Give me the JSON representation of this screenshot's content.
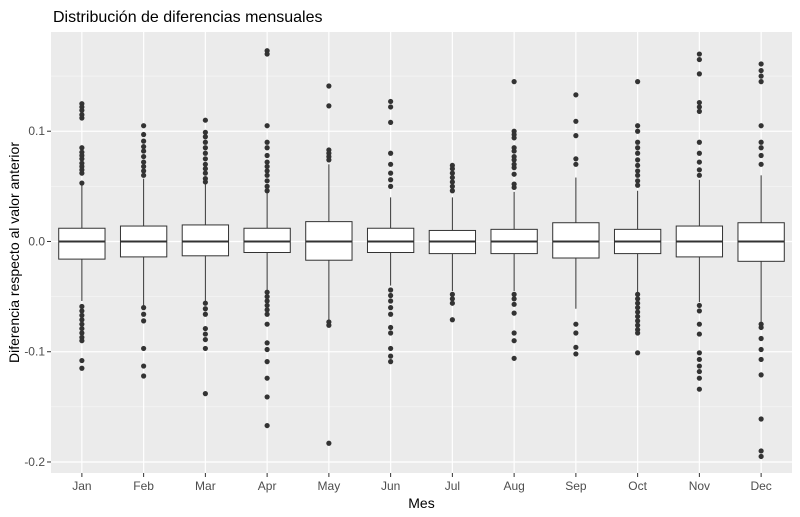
{
  "chart_data": {
    "type": "box",
    "title": "Distribución de diferencias mensuales",
    "xlabel": "Mes",
    "ylabel": "Diferencia respecto al valor anterior",
    "ylim": [
      -0.21,
      0.19
    ],
    "yticks": [
      {
        "value": 0.1,
        "label": "0.1"
      },
      {
        "value": 0.0,
        "label": "0.0"
      },
      {
        "value": -0.1,
        "label": "-0.1"
      },
      {
        "value": -0.2,
        "label": "-0.2"
      }
    ],
    "minor_yticks": [
      0.15,
      0.05,
      -0.05,
      -0.15
    ],
    "grid": true,
    "colors": {
      "panel": "#ebebeb",
      "grid_major": "#ffffff",
      "box_fill": "#ffffff",
      "box_line": "#333333",
      "outlier": "#333333"
    },
    "categories": [
      "Jan",
      "Feb",
      "Mar",
      "Apr",
      "May",
      "Jun",
      "Jul",
      "Aug",
      "Sep",
      "Oct",
      "Nov",
      "Dec"
    ],
    "boxes": [
      {
        "category": "Jan",
        "q1": -0.016,
        "median": 0.0,
        "q3": 0.012,
        "whisker_low": -0.054,
        "whisker_high": 0.052,
        "outliers": [
          0.125,
          0.122,
          0.119,
          0.115,
          0.112,
          0.085,
          0.081,
          0.078,
          0.075,
          0.071,
          0.068,
          0.065,
          0.062,
          0.053,
          -0.059,
          -0.063,
          -0.067,
          -0.071,
          -0.075,
          -0.079,
          -0.083,
          -0.087,
          -0.09,
          -0.108,
          -0.115
        ]
      },
      {
        "category": "Feb",
        "q1": -0.014,
        "median": 0.0,
        "q3": 0.014,
        "whisker_low": -0.058,
        "whisker_high": 0.057,
        "outliers": [
          0.105,
          0.097,
          0.091,
          0.086,
          0.082,
          0.077,
          0.072,
          0.068,
          0.064,
          0.06,
          -0.06,
          -0.066,
          -0.072,
          -0.097,
          -0.113,
          -0.122
        ]
      },
      {
        "category": "Mar",
        "q1": -0.013,
        "median": 0.0,
        "q3": 0.015,
        "whisker_low": -0.055,
        "whisker_high": 0.052,
        "outliers": [
          0.11,
          0.099,
          0.095,
          0.09,
          0.085,
          0.08,
          0.075,
          0.07,
          0.066,
          0.062,
          0.057,
          0.054,
          -0.056,
          -0.061,
          -0.066,
          -0.079,
          -0.084,
          -0.089,
          -0.097,
          -0.138
        ]
      },
      {
        "category": "Apr",
        "q1": -0.01,
        "median": 0.0,
        "q3": 0.012,
        "whisker_low": -0.044,
        "whisker_high": 0.044,
        "outliers": [
          0.173,
          0.17,
          0.105,
          0.09,
          0.085,
          0.078,
          0.072,
          0.068,
          0.064,
          0.06,
          0.055,
          0.05,
          0.046,
          -0.046,
          -0.05,
          -0.054,
          -0.058,
          -0.062,
          -0.066,
          -0.075,
          -0.092,
          -0.098,
          -0.109,
          -0.124,
          -0.141,
          -0.167
        ]
      },
      {
        "category": "May",
        "q1": -0.017,
        "median": 0.0,
        "q3": 0.018,
        "whisker_low": -0.071,
        "whisker_high": 0.07,
        "outliers": [
          0.141,
          0.123,
          0.083,
          0.08,
          0.077,
          0.074,
          -0.073,
          -0.076,
          -0.183
        ]
      },
      {
        "category": "Jun",
        "q1": -0.01,
        "median": 0.0,
        "q3": 0.012,
        "whisker_low": -0.04,
        "whisker_high": 0.04,
        "outliers": [
          0.127,
          0.122,
          0.108,
          0.08,
          0.07,
          0.062,
          0.056,
          0.05,
          -0.044,
          -0.049,
          -0.054,
          -0.06,
          -0.066,
          -0.078,
          -0.083,
          -0.097,
          -0.104,
          -0.109
        ]
      },
      {
        "category": "Jul",
        "q1": -0.011,
        "median": 0.0,
        "q3": 0.01,
        "whisker_low": -0.045,
        "whisker_high": 0.04,
        "outliers": [
          0.069,
          0.066,
          0.062,
          0.058,
          0.054,
          0.05,
          0.046,
          -0.048,
          -0.052,
          -0.056,
          -0.071
        ]
      },
      {
        "category": "Aug",
        "q1": -0.011,
        "median": 0.0,
        "q3": 0.011,
        "whisker_low": -0.045,
        "whisker_high": 0.045,
        "outliers": [
          0.145,
          0.1,
          0.097,
          0.094,
          0.085,
          0.082,
          0.077,
          0.074,
          0.07,
          0.067,
          0.061,
          0.052,
          0.049,
          -0.048,
          -0.052,
          -0.057,
          -0.065,
          -0.083,
          -0.09,
          -0.106
        ]
      },
      {
        "category": "Sep",
        "q1": -0.015,
        "median": 0.0,
        "q3": 0.017,
        "whisker_low": -0.061,
        "whisker_high": 0.058,
        "outliers": [
          0.133,
          0.109,
          0.096,
          0.075,
          0.07,
          -0.075,
          -0.083,
          -0.096,
          -0.102
        ]
      },
      {
        "category": "Oct",
        "q1": -0.011,
        "median": 0.0,
        "q3": 0.011,
        "whisker_low": -0.046,
        "whisker_high": 0.046,
        "outliers": [
          0.145,
          0.105,
          0.1,
          0.09,
          0.085,
          0.08,
          0.074,
          0.069,
          0.064,
          0.06,
          0.055,
          0.051,
          -0.048,
          -0.052,
          -0.056,
          -0.06,
          -0.064,
          -0.068,
          -0.072,
          -0.076,
          -0.08,
          -0.083,
          -0.101
        ]
      },
      {
        "category": "Nov",
        "q1": -0.014,
        "median": 0.0,
        "q3": 0.014,
        "whisker_low": -0.055,
        "whisker_high": 0.056,
        "outliers": [
          0.17,
          0.165,
          0.152,
          0.126,
          0.122,
          0.118,
          0.09,
          0.08,
          0.072,
          0.065,
          0.06,
          -0.058,
          -0.063,
          -0.075,
          -0.084,
          -0.101,
          -0.107,
          -0.113,
          -0.118,
          -0.124,
          -0.134
        ]
      },
      {
        "category": "Dec",
        "q1": -0.018,
        "median": 0.0,
        "q3": 0.017,
        "whisker_low": -0.073,
        "whisker_high": 0.06,
        "outliers": [
          0.161,
          0.155,
          0.15,
          0.145,
          0.105,
          0.09,
          0.085,
          0.078,
          0.07,
          -0.075,
          -0.078,
          -0.088,
          -0.098,
          -0.107,
          -0.121,
          -0.161,
          -0.19,
          -0.195
        ]
      }
    ]
  }
}
